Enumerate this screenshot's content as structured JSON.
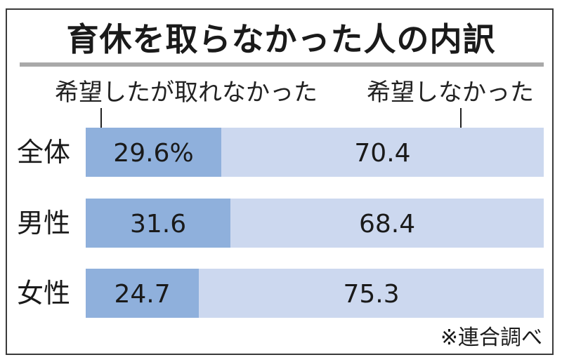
{
  "chart_data": {
    "type": "bar",
    "stacked": true,
    "orientation": "horizontal",
    "title": "育休を取らなかった人の内訳",
    "categories": [
      "全体",
      "男性",
      "女性"
    ],
    "series": [
      {
        "name": "希望したが取れなかった",
        "values": [
          29.6,
          31.6,
          24.7
        ],
        "labels": [
          "29.6%",
          "31.6",
          "24.7"
        ],
        "color": "#8fb0dc"
      },
      {
        "name": "希望しなかった",
        "values": [
          70.4,
          68.4,
          75.3
        ],
        "labels": [
          "70.4",
          "68.4",
          "75.3"
        ],
        "color": "#ccd8ef"
      }
    ],
    "xlim": [
      0,
      100
    ],
    "source": "※連合調べ"
  }
}
